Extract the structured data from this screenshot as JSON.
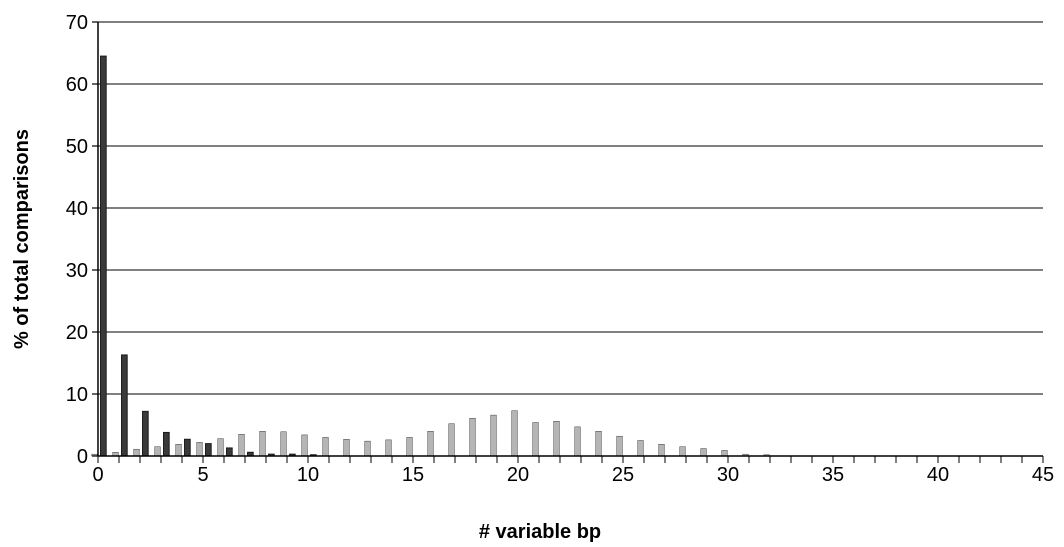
{
  "chart_data": {
    "type": "bar",
    "title": "",
    "xlabel": "# variable bp",
    "ylabel": "% of total comparisons",
    "xlim": [
      0,
      45
    ],
    "ylim": [
      0,
      70
    ],
    "x_ticks": [
      0,
      5,
      10,
      15,
      20,
      25,
      30,
      35,
      40,
      45
    ],
    "y_ticks": [
      0,
      10,
      20,
      30,
      40,
      50,
      60,
      70
    ],
    "grid": "horizontal",
    "legend": "none",
    "series": [
      {
        "color": "#3a3a3a",
        "x": [
          0,
          1,
          2,
          3,
          4,
          5,
          6,
          7,
          8,
          9,
          10
        ],
        "values": [
          64.5,
          16.3,
          7.2,
          3.8,
          2.7,
          2.0,
          1.3,
          0.6,
          0.3,
          0.3,
          0.2
        ]
      },
      {
        "color": "#b5b5b5",
        "x": [
          0,
          1,
          2,
          3,
          4,
          5,
          6,
          7,
          8,
          9,
          10,
          11,
          12,
          13,
          14,
          15,
          16,
          17,
          18,
          19,
          20,
          21,
          22,
          23,
          24,
          25,
          26,
          27,
          28,
          29,
          30,
          31,
          32
        ],
        "values": [
          0.3,
          0.6,
          1.1,
          1.5,
          1.9,
          2.2,
          2.8,
          3.5,
          4.0,
          3.9,
          3.4,
          3.0,
          2.7,
          2.4,
          2.6,
          3.0,
          4.0,
          5.2,
          6.1,
          6.6,
          7.3,
          5.4,
          5.6,
          4.7,
          4.0,
          3.2,
          2.5,
          1.9,
          1.5,
          1.2,
          0.9,
          0.3,
          0.2
        ]
      }
    ]
  }
}
